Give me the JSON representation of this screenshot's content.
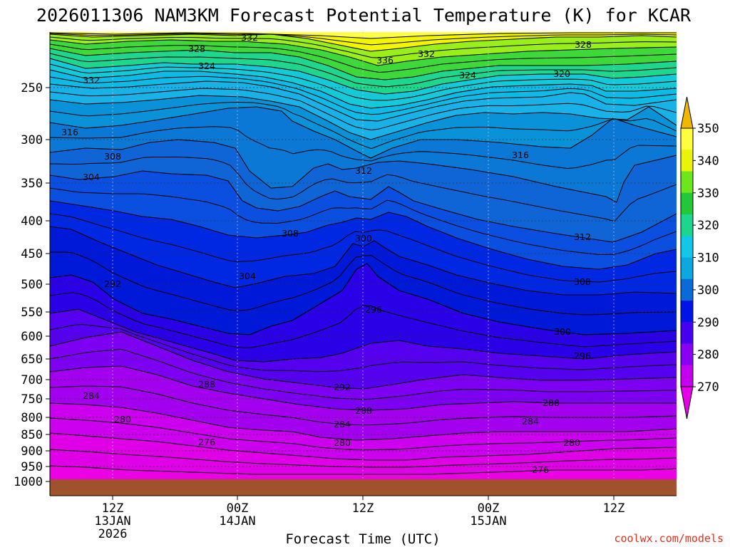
{
  "chart_data": {
    "type": "heatmap",
    "title": "2026011306 NAM3KM Forecast Potential Temperature (K) for KCAR",
    "xlabel": "Forecast Time (UTC)",
    "ylabel": "",
    "y_axis_ticks": [
      "250",
      "300",
      "350",
      "400",
      "450",
      "500",
      "550",
      "600",
      "650",
      "700",
      "750",
      "800",
      "850",
      "900",
      "950",
      "1000"
    ],
    "x_axis_ticks": [
      {
        "hour": "12Z",
        "date": "13JAN",
        "year": "2026"
      },
      {
        "hour": "00Z",
        "date": "14JAN",
        "year": ""
      },
      {
        "hour": "12Z",
        "date": "",
        "year": ""
      },
      {
        "hour": "00Z",
        "date": "15JAN",
        "year": ""
      },
      {
        "hour": "12Z",
        "date": "",
        "year": ""
      }
    ],
    "colorbar": {
      "ticks": [
        "270",
        "280",
        "290",
        "300",
        "310",
        "320",
        "330",
        "340",
        "350"
      ],
      "colors": [
        "#e800e8",
        "#c400f0",
        "#8a00f2",
        "#4500f0",
        "#0014e6",
        "#0a6ad6",
        "#0ea8e0",
        "#12c8e6",
        "#1cd690",
        "#22c83a",
        "#6ee61e",
        "#e8f40a",
        "#ffff40",
        "#f2b800"
      ]
    },
    "contour_labels": [
      "332",
      "328",
      "324",
      "332",
      "336",
      "332",
      "328",
      "324",
      "320",
      "316",
      "316",
      "308",
      "312",
      "304",
      "308",
      "300",
      "312",
      "304",
      "292",
      "296",
      "308",
      "300",
      "296",
      "288",
      "292",
      "284",
      "288",
      "288",
      "284",
      "280",
      "276",
      "280",
      "284",
      "280",
      "276"
    ],
    "ground_color": "#a0522d"
  },
  "credit": "coolwx.com/models"
}
